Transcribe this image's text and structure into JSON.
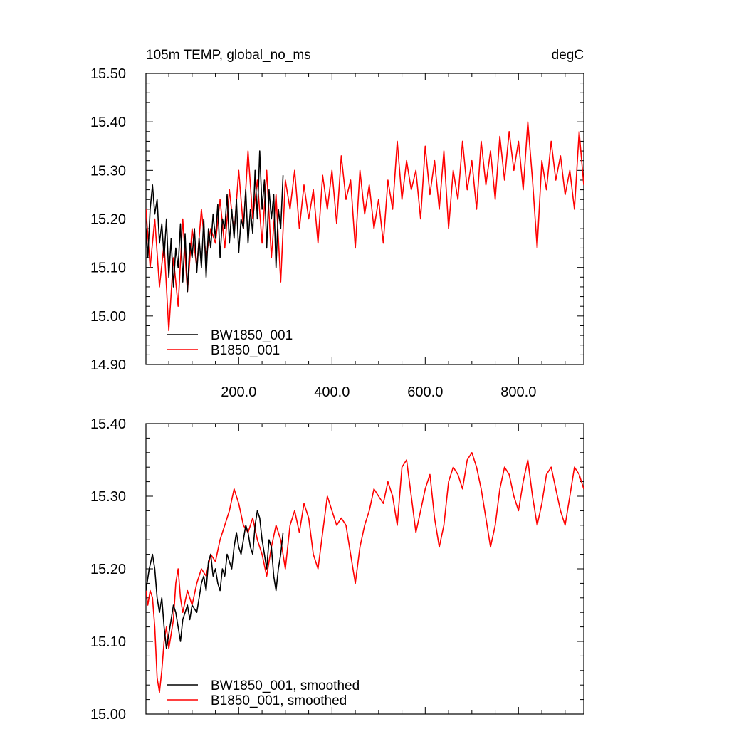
{
  "chart_data": [
    {
      "type": "line",
      "title_left": "105m TEMP, global_no_ms",
      "title_right": "degC",
      "xlabel": "",
      "ylabel": "",
      "xlim": [
        1,
        940
      ],
      "ylim": [
        14.9,
        15.5
      ],
      "x_ticks": [
        200,
        400,
        600,
        800
      ],
      "x_tick_labels": [
        "200.0",
        "400.0",
        "600.0",
        "800.0"
      ],
      "y_ticks": [
        14.9,
        15.0,
        15.1,
        15.2,
        15.3,
        15.4,
        15.5
      ],
      "y_tick_labels": [
        "14.90",
        "15.00",
        "15.10",
        "15.20",
        "15.30",
        "15.40",
        "15.50"
      ],
      "legend_position": "bottom-left",
      "series": [
        {
          "name": "BW1850_001",
          "color": "#000000",
          "x": [
            1,
            5,
            10,
            15,
            20,
            25,
            30,
            35,
            40,
            45,
            50,
            55,
            60,
            65,
            70,
            75,
            80,
            85,
            90,
            95,
            100,
            105,
            110,
            115,
            120,
            125,
            130,
            135,
            140,
            145,
            150,
            155,
            160,
            165,
            170,
            175,
            180,
            185,
            190,
            195,
            200,
            205,
            210,
            215,
            220,
            225,
            230,
            235,
            240,
            245,
            250,
            255,
            260,
            265,
            270,
            275,
            280,
            285,
            290,
            295
          ],
          "y": [
            15.18,
            15.12,
            15.22,
            15.27,
            15.21,
            15.24,
            15.15,
            15.19,
            15.12,
            15.2,
            15.08,
            15.16,
            15.06,
            15.14,
            15.1,
            15.19,
            15.07,
            15.17,
            15.05,
            15.15,
            15.12,
            15.18,
            15.09,
            15.16,
            15.1,
            15.2,
            15.08,
            15.18,
            15.14,
            15.21,
            15.16,
            15.23,
            15.12,
            15.2,
            15.18,
            15.25,
            15.15,
            15.22,
            15.16,
            15.24,
            15.13,
            15.2,
            15.18,
            15.26,
            15.15,
            15.22,
            15.17,
            15.3,
            15.2,
            15.34,
            15.22,
            15.28,
            15.14,
            15.26,
            15.2,
            15.25,
            15.1,
            15.22,
            15.18,
            15.29
          ]
        },
        {
          "name": "B1850_001",
          "color": "#ff0000",
          "x": [
            1,
            10,
            20,
            30,
            40,
            50,
            60,
            70,
            80,
            90,
            100,
            110,
            120,
            130,
            140,
            150,
            160,
            170,
            180,
            190,
            200,
            210,
            220,
            230,
            240,
            250,
            260,
            270,
            280,
            290,
            300,
            310,
            320,
            330,
            340,
            350,
            360,
            370,
            380,
            390,
            400,
            410,
            420,
            430,
            440,
            450,
            460,
            470,
            480,
            490,
            500,
            510,
            520,
            530,
            540,
            550,
            560,
            570,
            580,
            590,
            600,
            610,
            620,
            630,
            640,
            650,
            660,
            670,
            680,
            690,
            700,
            710,
            720,
            730,
            740,
            750,
            760,
            770,
            780,
            790,
            800,
            810,
            820,
            830,
            840,
            850,
            860,
            870,
            880,
            890,
            900,
            910,
            920,
            930,
            940
          ],
          "y": [
            15.22,
            15.1,
            15.2,
            15.06,
            15.15,
            14.97,
            15.12,
            15.02,
            15.2,
            15.05,
            15.18,
            15.1,
            15.22,
            15.12,
            15.18,
            15.15,
            15.24,
            15.14,
            15.26,
            15.17,
            15.3,
            15.18,
            15.34,
            15.2,
            15.28,
            15.15,
            15.3,
            15.12,
            15.25,
            15.07,
            15.28,
            15.22,
            15.3,
            15.18,
            15.27,
            15.2,
            15.26,
            15.15,
            15.29,
            15.22,
            15.3,
            15.19,
            15.33,
            15.24,
            15.28,
            15.14,
            15.3,
            15.21,
            15.27,
            15.18,
            15.24,
            15.15,
            15.28,
            15.22,
            15.36,
            15.24,
            15.32,
            15.26,
            15.3,
            15.2,
            15.35,
            15.25,
            15.32,
            15.22,
            15.34,
            15.18,
            15.3,
            15.24,
            15.36,
            15.26,
            15.32,
            15.22,
            15.36,
            15.27,
            15.34,
            15.24,
            15.37,
            15.28,
            15.38,
            15.3,
            15.36,
            15.26,
            15.4,
            15.28,
            15.14,
            15.32,
            15.26,
            15.36,
            15.28,
            15.33,
            15.25,
            15.3,
            15.22,
            15.38,
            15.27
          ]
        }
      ]
    },
    {
      "type": "line",
      "xlabel": "",
      "ylabel": "",
      "xlim": [
        1,
        940
      ],
      "ylim": [
        15.0,
        15.4
      ],
      "x_ticks": [
        200,
        400,
        600,
        800
      ],
      "y_ticks": [
        15.0,
        15.1,
        15.2,
        15.3,
        15.4
      ],
      "y_tick_labels": [
        "15.00",
        "15.10",
        "15.20",
        "15.30",
        "15.40"
      ],
      "legend_position": "bottom-left",
      "series": [
        {
          "name": "BW1850_001, smoothed",
          "color": "#000000",
          "x": [
            1,
            8,
            15,
            20,
            25,
            30,
            35,
            40,
            45,
            50,
            55,
            60,
            65,
            70,
            75,
            80,
            85,
            90,
            95,
            100,
            110,
            115,
            120,
            125,
            130,
            135,
            140,
            145,
            150,
            155,
            160,
            165,
            170,
            175,
            180,
            185,
            190,
            195,
            200,
            205,
            210,
            215,
            220,
            225,
            230,
            235,
            240,
            245,
            250,
            255,
            260,
            265,
            270,
            275,
            280,
            285,
            290,
            295
          ],
          "y": [
            15.17,
            15.2,
            15.22,
            15.2,
            15.16,
            15.14,
            15.16,
            15.12,
            15.09,
            15.11,
            15.13,
            15.15,
            15.14,
            15.12,
            15.1,
            15.13,
            15.14,
            15.15,
            15.13,
            15.15,
            15.14,
            15.16,
            15.18,
            15.19,
            15.17,
            15.21,
            15.22,
            15.19,
            15.2,
            15.18,
            15.17,
            15.2,
            15.19,
            15.22,
            15.21,
            15.2,
            15.23,
            15.25,
            15.23,
            15.22,
            15.24,
            15.26,
            15.25,
            15.23,
            15.22,
            15.26,
            15.28,
            15.27,
            15.24,
            15.22,
            15.2,
            15.24,
            15.23,
            15.19,
            15.17,
            15.2,
            15.22,
            15.25
          ]
        },
        {
          "name": "B1850_001, smoothed",
          "color": "#ff0000",
          "x": [
            1,
            5,
            10,
            15,
            20,
            25,
            30,
            35,
            40,
            45,
            50,
            55,
            60,
            65,
            70,
            75,
            80,
            90,
            100,
            110,
            120,
            130,
            140,
            150,
            160,
            170,
            180,
            190,
            200,
            210,
            220,
            230,
            240,
            250,
            260,
            270,
            280,
            290,
            300,
            310,
            320,
            330,
            340,
            350,
            360,
            370,
            380,
            390,
            400,
            410,
            420,
            430,
            440,
            450,
            460,
            470,
            480,
            490,
            500,
            510,
            520,
            530,
            540,
            550,
            560,
            570,
            580,
            590,
            600,
            610,
            620,
            630,
            640,
            650,
            660,
            670,
            680,
            690,
            700,
            710,
            720,
            730,
            740,
            750,
            760,
            770,
            780,
            790,
            800,
            810,
            820,
            830,
            840,
            850,
            860,
            870,
            880,
            890,
            900,
            910,
            920,
            930,
            940
          ],
          "y": [
            15.17,
            15.15,
            15.17,
            15.16,
            15.12,
            15.05,
            15.03,
            15.06,
            15.1,
            15.12,
            15.09,
            15.11,
            15.13,
            15.18,
            15.2,
            15.16,
            15.14,
            15.17,
            15.15,
            15.18,
            15.2,
            15.19,
            15.22,
            15.21,
            15.24,
            15.26,
            15.28,
            15.31,
            15.29,
            15.26,
            15.25,
            15.27,
            15.24,
            15.22,
            15.19,
            15.23,
            15.26,
            15.24,
            15.2,
            15.26,
            15.28,
            15.25,
            15.29,
            15.27,
            15.22,
            15.2,
            15.25,
            15.3,
            15.28,
            15.26,
            15.27,
            15.26,
            15.22,
            15.18,
            15.23,
            15.26,
            15.28,
            15.31,
            15.3,
            15.29,
            15.32,
            15.3,
            15.26,
            15.34,
            15.35,
            15.3,
            15.25,
            15.28,
            15.31,
            15.33,
            15.27,
            15.23,
            15.26,
            15.32,
            15.34,
            15.33,
            15.31,
            15.35,
            15.36,
            15.34,
            15.31,
            15.27,
            15.23,
            15.26,
            15.31,
            15.34,
            15.33,
            15.3,
            15.28,
            15.32,
            15.35,
            15.3,
            15.26,
            15.29,
            15.33,
            15.34,
            15.31,
            15.28,
            15.26,
            15.3,
            15.34,
            15.33,
            15.31
          ]
        }
      ]
    }
  ]
}
